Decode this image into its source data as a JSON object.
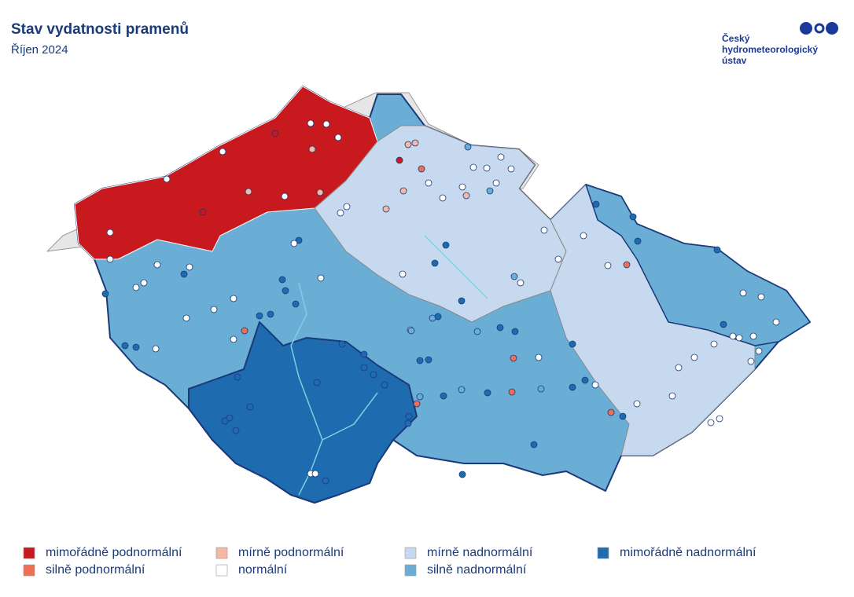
{
  "header": {
    "title": "Stav vydatnosti pramenů",
    "subtitle": "Říjen 2024"
  },
  "logo": {
    "lines": [
      "Český",
      "hydrometeorologický",
      "ústav"
    ]
  },
  "legend": {
    "items": [
      {
        "label": "mimořádně podnormální",
        "color": "#c8191f"
      },
      {
        "label": "silně podnormální",
        "color": "#ef6f55"
      },
      {
        "label": "mírně podnormální",
        "color": "#f4b9a4"
      },
      {
        "label": "normální",
        "color": "#ffffff"
      },
      {
        "label": "mírně nadnormální",
        "color": "#c6d9ef"
      },
      {
        "label": "silně nadnormální",
        "color": "#6aaed6"
      },
      {
        "label": "mimořádně nadnormální",
        "color": "#1f6bb0"
      }
    ]
  }
}
